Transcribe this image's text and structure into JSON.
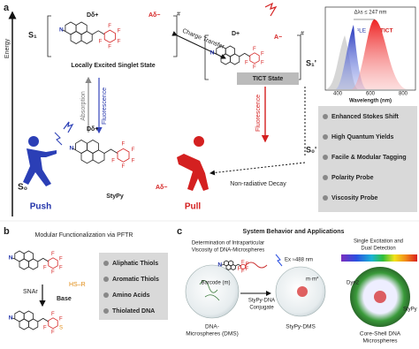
{
  "panel_a": {
    "label": "a",
    "energy_axis": "Energy",
    "levels": {
      "s1": "S₁",
      "s1_prime": "S₁'",
      "s0_prime": "S₀'",
      "s0": "S₀"
    },
    "le_state": {
      "donor": "Dδ+",
      "acceptor": "Aδ−",
      "mark": "#",
      "caption": "Locally Excited Singlet State"
    },
    "charge_transfer": "Charge Transfer",
    "tict_state": {
      "donor": "D+",
      "acceptor": "A−",
      "mark": "#",
      "caption": "TICT State"
    },
    "absorption": "Absorption",
    "fluorescence_le": "Fluorescence",
    "fluorescence_tict": "Fluorescence",
    "ground": {
      "donor": "Dδ+",
      "acceptor": "Aδ−",
      "name": "StyPy",
      "push": "Push",
      "pull": "Pull"
    },
    "nonradiative": "Non-radiative Decay",
    "spectrum": {
      "shift": "Δλs ≤ 247 nm",
      "le_label": "¹LE",
      "tict_label": "TICT",
      "xticks": [
        "400",
        "600",
        "800"
      ],
      "xlabel": "Wavelength (nm)"
    },
    "features": [
      "Enhanced Stokes Shift",
      "High Quantum Yields",
      "Facile & Modular Tagging",
      "Polarity Probe",
      "Viscosity Probe"
    ]
  },
  "atoms": {
    "nitrogen": "N",
    "fluorine": "F",
    "sulfur": "S"
  },
  "panel_b": {
    "label": "b",
    "title": "Modular Functionalization via PFTR",
    "reaction": "SNAr",
    "reagent": "HS–R",
    "base": "Base",
    "thiols": [
      "Aliphatic Thiols",
      "Aromatic Thiols",
      "Amino Acids",
      "Thiolated DNA"
    ]
  },
  "panel_c": {
    "label": "c",
    "title": "System Behavior and Applications",
    "viscosity": [
      "Determination of Intraparticular",
      "Viscosity of DNA-Microspheres"
    ],
    "barcode": "Barcode (m)",
    "dms": [
      "DNA-",
      "Microspheres (DMS)"
    ],
    "conjugate": [
      "StyPy-DNA",
      "Conjugate"
    ],
    "excitation": "Ex ≈488 nm",
    "complex": "m·m*",
    "stypy_dms": "StyPy-DMS",
    "dual": [
      "Single Excitation and",
      "Dual Detection"
    ],
    "dye2": "Dye2",
    "stypy": "StyPy",
    "core_shell": [
      "Core-Shell DNA",
      "Microspheres"
    ]
  }
}
